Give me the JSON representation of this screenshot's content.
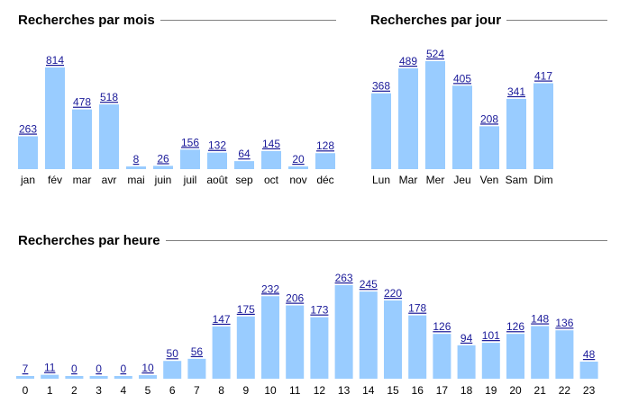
{
  "colors": {
    "bar": "#99ccff",
    "value_link": "#1a1a99",
    "rule": "#808080"
  },
  "chart_data": [
    {
      "type": "bar",
      "title": "Recherches par mois",
      "categories": [
        "jan",
        "fév",
        "mar",
        "avr",
        "mai",
        "juin",
        "juil",
        "août",
        "sep",
        "oct",
        "nov",
        "déc"
      ],
      "values": [
        263,
        814,
        478,
        518,
        8,
        26,
        156,
        132,
        64,
        145,
        20,
        128
      ],
      "value_labels": true
    },
    {
      "type": "bar",
      "title": "Recherches par jour",
      "categories": [
        "Lun",
        "Mar",
        "Mer",
        "Jeu",
        "Ven",
        "Sam",
        "Dim"
      ],
      "values": [
        368,
        489,
        524,
        405,
        208,
        341,
        417
      ],
      "value_labels": true
    },
    {
      "type": "bar",
      "title": "Recherches par heure",
      "categories": [
        "0",
        "1",
        "2",
        "3",
        "4",
        "5",
        "6",
        "7",
        "8",
        "9",
        "10",
        "11",
        "12",
        "13",
        "14",
        "15",
        "16",
        "17",
        "18",
        "19",
        "20",
        "21",
        "22",
        "23"
      ],
      "values": [
        7,
        11,
        0,
        0,
        0,
        10,
        50,
        56,
        147,
        175,
        232,
        206,
        173,
        263,
        245,
        220,
        178,
        126,
        94,
        101,
        126,
        148,
        136,
        48
      ],
      "value_labels": true
    }
  ]
}
